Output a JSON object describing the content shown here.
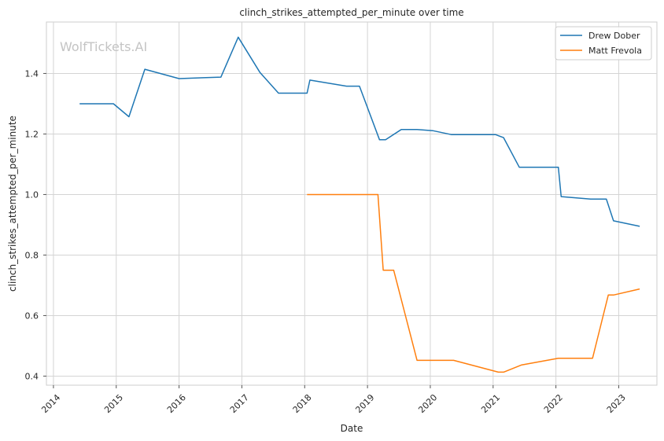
{
  "chart_data": {
    "type": "line",
    "title": "clinch_strikes_attempted_per_minute over time",
    "xlabel": "Date",
    "ylabel": "clinch_strikes_attempted_per_minute",
    "watermark": "WolfTickets.AI",
    "xlim": [
      "2013-11-21",
      "2023-08-10"
    ],
    "ylim": [
      0.37,
      1.57
    ],
    "x_ticks": [
      "2014",
      "2015",
      "2016",
      "2017",
      "2018",
      "2019",
      "2020",
      "2021",
      "2022",
      "2023"
    ],
    "y_ticks": [
      "0.4",
      "0.6",
      "0.8",
      "1.0",
      "1.2",
      "1.4"
    ],
    "grid": true,
    "legend_position": "top-right",
    "colors": {
      "Drew Dober": "#1f77b4",
      "Matt Frevola": "#ff7f0e"
    },
    "series": [
      {
        "name": "Drew Dober",
        "x": [
          "2014-06-01",
          "2014-12-15",
          "2015-03-14",
          "2015-06-15",
          "2016-01-01",
          "2016-09-01",
          "2016-12-10",
          "2017-04-15",
          "2017-08-01",
          "2018-01-15",
          "2018-02-01",
          "2018-09-01",
          "2018-11-15",
          "2019-03-10",
          "2019-04-15",
          "2019-07-15",
          "2019-10-15",
          "2020-01-15",
          "2020-05-01",
          "2021-01-15",
          "2021-03-01",
          "2021-06-01",
          "2022-01-15",
          "2022-02-01",
          "2022-07-20",
          "2022-10-20",
          "2022-12-01",
          "2023-05-01"
        ],
        "y": [
          1.3,
          1.3,
          1.257,
          1.414,
          1.383,
          1.388,
          1.52,
          1.403,
          1.335,
          1.335,
          1.378,
          1.358,
          1.358,
          1.181,
          1.181,
          1.215,
          1.215,
          1.211,
          1.198,
          1.198,
          1.188,
          1.09,
          1.09,
          0.993,
          0.985,
          0.985,
          0.913,
          0.895
        ]
      },
      {
        "name": "Matt Frevola",
        "x": [
          "2018-01-15",
          "2019-03-01",
          "2019-04-01",
          "2019-06-01",
          "2019-10-15",
          "2020-05-15",
          "2021-02-01",
          "2021-03-01",
          "2021-06-15",
          "2022-01-15",
          "2022-08-01",
          "2022-11-01",
          "2022-12-01",
          "2023-05-01"
        ],
        "y": [
          1.0,
          1.0,
          0.75,
          0.75,
          0.452,
          0.452,
          0.413,
          0.413,
          0.437,
          0.459,
          0.459,
          0.668,
          0.668,
          0.688
        ]
      }
    ]
  }
}
